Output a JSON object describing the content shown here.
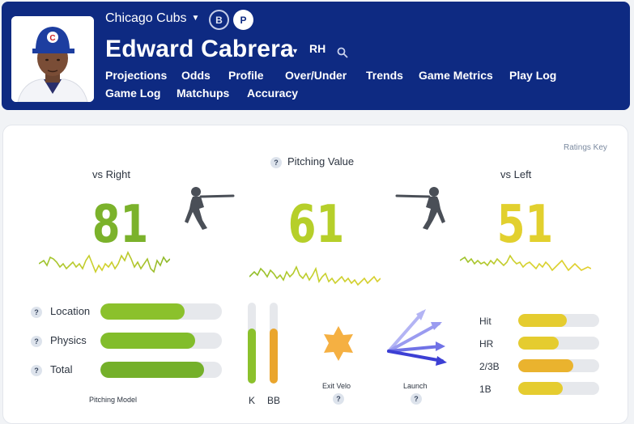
{
  "header": {
    "team": "Chicago Cubs",
    "toggle_b": "B",
    "toggle_p": "P",
    "player_name": "Edward Cabrera",
    "handedness": "RH",
    "nav": [
      "Projections",
      "Odds",
      "Profile",
      "Over/Under",
      "Trends",
      "Game Metrics",
      "Play Log",
      "Game Log",
      "Matchups",
      "Accuracy"
    ],
    "active_tab": "Profile",
    "colors": {
      "bg": "#0e2a82"
    }
  },
  "card": {
    "ratings_key": "Ratings Key",
    "help_mark": "?",
    "vs_right": {
      "label": "vs Right",
      "value": "81",
      "color": "#7bb22b"
    },
    "pitching_value": {
      "label": "Pitching Value",
      "value": "61",
      "color": "#b6cf2a"
    },
    "vs_left": {
      "label": "vs Left",
      "value": "51",
      "color": "#e2d02e"
    },
    "model": {
      "caption": "Pitching Model",
      "rows": [
        {
          "label": "Location",
          "pct": 0.69,
          "color": "#8bc12c"
        },
        {
          "label": "Physics",
          "pct": 0.78,
          "color": "#82bd2b"
        },
        {
          "label": "Total",
          "pct": 0.85,
          "color": "#74b02a"
        }
      ]
    },
    "k_bb": [
      {
        "label": "K",
        "pct": 0.68,
        "color": "#8bc12c"
      },
      {
        "label": "BB",
        "pct": 0.68,
        "color": "#eaa52c"
      }
    ],
    "exit_velo": {
      "label": "Exit Velo",
      "color": "#f5b042"
    },
    "launch": {
      "label": "Launch"
    },
    "outcomes": [
      {
        "label": "Hit",
        "pct": 0.6,
        "color": "#e5cc2f"
      },
      {
        "label": "HR",
        "pct": 0.5,
        "color": "#e5cc2f"
      },
      {
        "label": "2/3B",
        "pct": 0.68,
        "color": "#eab32e"
      },
      {
        "label": "1B",
        "pct": 0.55,
        "color": "#e5cc2f"
      }
    ]
  }
}
